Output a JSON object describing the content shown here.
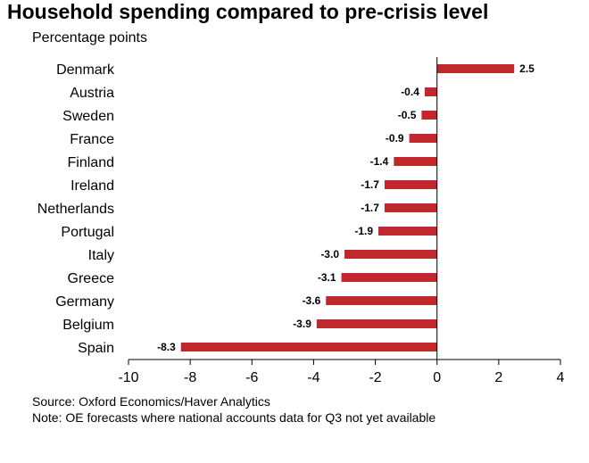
{
  "title": "Household spending compared to pre-crisis level",
  "subtitle": "Percentage points",
  "source": "Source: Oxford Economics/Haver Analytics",
  "note": "Note: OE forecasts where national accounts data for Q3 not yet available",
  "colors": {
    "bar": "#c0282e",
    "axis": "#000000"
  },
  "chart_data": {
    "type": "bar",
    "orientation": "horizontal",
    "categories": [
      "Denmark",
      "Austria",
      "Sweden",
      "France",
      "Finland",
      "Ireland",
      "Netherlands",
      "Portugal",
      "Italy",
      "Greece",
      "Germany",
      "Belgium",
      "Spain"
    ],
    "values": [
      2.5,
      -0.4,
      -0.5,
      -0.9,
      -1.4,
      -1.7,
      -1.7,
      -1.9,
      -3.0,
      -3.1,
      -3.6,
      -3.9,
      -8.3
    ],
    "value_labels": [
      "2.5",
      "-0.4",
      "-0.5",
      "-0.9",
      "-1.4",
      "-1.7",
      "-1.7",
      "-1.9",
      "-3.0",
      "-3.1",
      "-3.6",
      "-3.9",
      "-8.3"
    ],
    "xlim": [
      -10,
      4
    ],
    "xticks": [
      -10,
      -8,
      -6,
      -4,
      -2,
      0,
      2,
      4
    ],
    "xtick_labels": [
      "-10",
      "-8",
      "-6",
      "-4",
      "-2",
      "0",
      "2",
      "4"
    ],
    "grid": false,
    "legend": "none"
  }
}
